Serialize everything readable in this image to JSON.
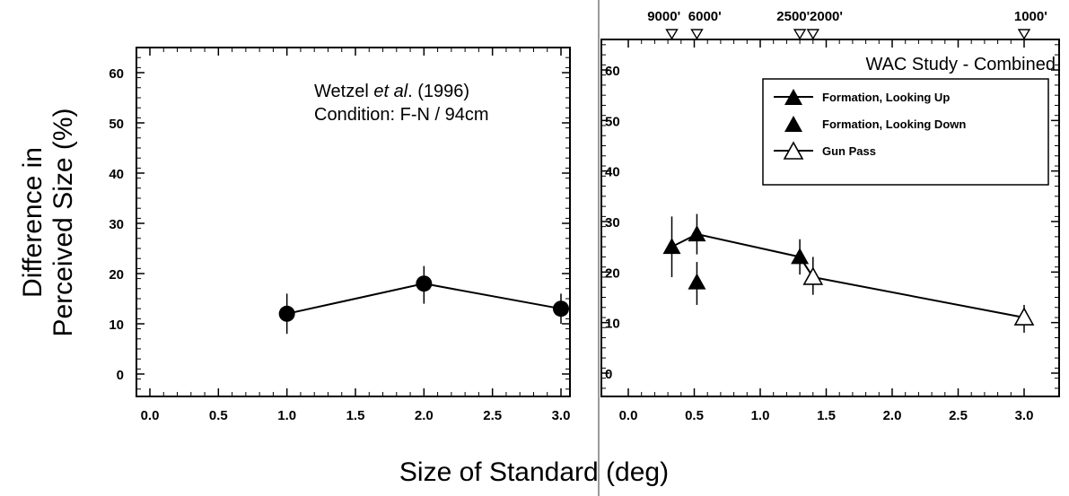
{
  "chart_data": [
    {
      "type": "line",
      "xlabel": "Size of Standard (deg)",
      "ylabel": "Difference in Perceived Size (%)",
      "ylabel_lines": [
        "Difference in",
        "Perceived Size (%)"
      ],
      "xlim": [
        -0.1,
        3.25
      ],
      "ylim": [
        -5,
        65
      ],
      "xticks": [
        0.0,
        0.5,
        1.0,
        1.5,
        2.0,
        2.5,
        3.0
      ],
      "xtick_labels": [
        "0.0",
        "0.5",
        "1.0",
        "1.5",
        "2.0",
        "2.5",
        "3.0"
      ],
      "yticks": [
        0,
        10,
        20,
        30,
        40,
        50,
        60
      ],
      "ytick_labels": [
        "0",
        "10",
        "20",
        "30",
        "40",
        "50",
        "60"
      ],
      "annotations": [
        "Wetzel et al. (1996)",
        "Condition: F-N / 94cm"
      ],
      "annotation_parts": {
        "author": "Wetzel ",
        "etal": "et al",
        "rest": ". (1996)",
        "condition": "Condition: F-N / 94cm"
      },
      "series": [
        {
          "marker": "circle-filled",
          "connected": true,
          "x": [
            1.0,
            2.0,
            3.0
          ],
          "y": [
            12,
            18,
            13
          ],
          "err_low": [
            8,
            14,
            10
          ],
          "err_high": [
            16,
            21.5,
            16
          ]
        }
      ]
    },
    {
      "type": "line",
      "title": "WAC Study - Combined",
      "xlim": [
        -0.1,
        3.25
      ],
      "ylim": [
        -5,
        65
      ],
      "xticks": [
        0.0,
        0.5,
        1.0,
        1.5,
        2.0,
        2.5,
        3.0
      ],
      "xtick_labels": [
        "0.0",
        "0.5",
        "1.0",
        "1.5",
        "2.0",
        "2.5",
        "3.0"
      ],
      "yticks": [
        0,
        10,
        20,
        30,
        40,
        50,
        60
      ],
      "ytick_labels": [
        "0",
        "10",
        "20",
        "30",
        "40",
        "50",
        "60"
      ],
      "secondary_x": {
        "labels": [
          "9000'",
          "6000'",
          "2500'",
          "2000'",
          "1000'"
        ],
        "marker_x": [
          0.33,
          0.52,
          1.3,
          1.4,
          3.0
        ],
        "label_x": [
          0.27,
          0.58,
          1.25,
          1.5,
          3.05
        ]
      },
      "legend_position": "top-right",
      "series": [
        {
          "name": "Formation, Looking Up",
          "marker": "triangle-filled",
          "connected": true,
          "x": [
            0.33,
            0.52,
            1.3
          ],
          "y": [
            25,
            27.5,
            23
          ],
          "err_low": [
            19,
            23.5,
            19.5
          ],
          "err_high": [
            31,
            31.5,
            26.5
          ]
        },
        {
          "name": "Formation, Looking Down",
          "marker": "triangle-filled",
          "connected": false,
          "x": [
            0.52
          ],
          "y": [
            18
          ],
          "err_low": [
            13.5
          ],
          "err_high": [
            22
          ]
        },
        {
          "name": "Gun Pass",
          "marker": "triangle-open",
          "connected": true,
          "x": [
            1.4,
            3.0
          ],
          "y": [
            19,
            11
          ],
          "err_low": [
            15.5,
            8
          ],
          "err_high": [
            23,
            13.5
          ]
        }
      ],
      "bridge_segment": {
        "from": [
          1.3,
          23
        ],
        "to": [
          1.4,
          19
        ]
      }
    }
  ]
}
